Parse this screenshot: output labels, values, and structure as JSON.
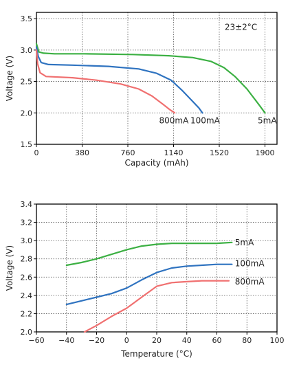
{
  "chart_data": [
    {
      "type": "line",
      "xlabel": "Capacity (mAh)",
      "ylabel": "Voltage (V)",
      "xlim": [
        0,
        2000
      ],
      "ylim": [
        1.5,
        3.6
      ],
      "xticks": [
        {
          "v": 0,
          "label": "0"
        },
        {
          "v": 380,
          "label": "380"
        },
        {
          "v": 760,
          "label": "760"
        },
        {
          "v": 1140,
          "label": "1140"
        },
        {
          "v": 1520,
          "label": "1520"
        },
        {
          "v": 1900,
          "label": "1900"
        }
      ],
      "yticks": [
        {
          "v": 1.5,
          "label": "1.5"
        },
        {
          "v": 2.0,
          "label": "2.0"
        },
        {
          "v": 2.5,
          "label": "2.5"
        },
        {
          "v": 3.0,
          "label": "3.0"
        },
        {
          "v": 3.5,
          "label": "3.5"
        }
      ],
      "annotation": "23±2°C",
      "grid": true,
      "series": [
        {
          "name": "5mA",
          "color": "#3cb043",
          "x": [
            0,
            20,
            60,
            150,
            400,
            800,
            1100,
            1300,
            1450,
            1560,
            1650,
            1750,
            1850,
            1900
          ],
          "y": [
            3.1,
            2.97,
            2.95,
            2.94,
            2.94,
            2.93,
            2.91,
            2.88,
            2.82,
            2.72,
            2.58,
            2.38,
            2.13,
            2.0
          ]
        },
        {
          "name": "100mA",
          "color": "#2f73c0",
          "x": [
            0,
            15,
            40,
            100,
            300,
            600,
            850,
            1000,
            1120,
            1210,
            1290,
            1350,
            1380
          ],
          "y": [
            3.05,
            2.9,
            2.8,
            2.77,
            2.76,
            2.74,
            2.7,
            2.63,
            2.52,
            2.36,
            2.2,
            2.08,
            2.0
          ]
        },
        {
          "name": "800mA",
          "color": "#f07070",
          "x": [
            0,
            10,
            30,
            80,
            300,
            500,
            700,
            850,
            960,
            1050,
            1110,
            1150
          ],
          "y": [
            3.0,
            2.78,
            2.64,
            2.58,
            2.56,
            2.52,
            2.46,
            2.38,
            2.27,
            2.14,
            2.05,
            2.0
          ]
        }
      ],
      "series_labels": [
        {
          "text": "800mA",
          "color": "#222",
          "at": [
            1020,
            1.88
          ]
        },
        {
          "text": "100mA",
          "color": "#222",
          "at": [
            1280,
            1.88
          ]
        },
        {
          "text": "5mA",
          "color": "#222",
          "at": [
            1840,
            1.88
          ]
        }
      ]
    },
    {
      "type": "line",
      "xlabel": "Temperature (°C)",
      "ylabel": "Voltage (V)",
      "xlim": [
        -60,
        100
      ],
      "ylim": [
        2.0,
        3.4
      ],
      "xticks": [
        {
          "v": -60,
          "label": "−60"
        },
        {
          "v": -40,
          "label": "−40"
        },
        {
          "v": -20,
          "label": "−20"
        },
        {
          "v": 0,
          "label": "0"
        },
        {
          "v": 20,
          "label": "20"
        },
        {
          "v": 40,
          "label": "40"
        },
        {
          "v": 60,
          "label": "60"
        },
        {
          "v": 80,
          "label": "80"
        },
        {
          "v": 100,
          "label": "100"
        }
      ],
      "yticks": [
        {
          "v": 2.0,
          "label": "2.0"
        },
        {
          "v": 2.2,
          "label": "2.2"
        },
        {
          "v": 2.4,
          "label": "2.4"
        },
        {
          "v": 2.6,
          "label": "2.6"
        },
        {
          "v": 2.8,
          "label": "2.8"
        },
        {
          "v": 3.0,
          "label": "3.0"
        },
        {
          "v": 3.2,
          "label": "3.2"
        },
        {
          "v": 3.4,
          "label": "3.4"
        }
      ],
      "grid": true,
      "series": [
        {
          "name": "5mA",
          "color": "#3cb043",
          "x": [
            -40,
            -30,
            -20,
            -10,
            0,
            10,
            20,
            30,
            40,
            50,
            60,
            70
          ],
          "y": [
            2.73,
            2.76,
            2.8,
            2.85,
            2.9,
            2.94,
            2.96,
            2.97,
            2.97,
            2.97,
            2.97,
            2.98
          ]
        },
        {
          "name": "100mA",
          "color": "#2f73c0",
          "x": [
            -40,
            -30,
            -20,
            -10,
            0,
            10,
            20,
            30,
            40,
            50,
            60,
            70
          ],
          "y": [
            2.3,
            2.34,
            2.38,
            2.42,
            2.48,
            2.57,
            2.65,
            2.7,
            2.72,
            2.73,
            2.74,
            2.74
          ]
        },
        {
          "name": "800mA",
          "color": "#f07070",
          "x": [
            -28,
            -20,
            -10,
            0,
            10,
            20,
            30,
            40,
            50,
            60,
            68
          ],
          "y": [
            2.0,
            2.07,
            2.17,
            2.26,
            2.38,
            2.5,
            2.54,
            2.55,
            2.56,
            2.56,
            2.56
          ]
        }
      ],
      "series_labels": [
        {
          "text": "5mA",
          "color": "#222",
          "at": [
            72,
            2.98
          ]
        },
        {
          "text": "100mA",
          "color": "#222",
          "at": [
            72,
            2.75
          ]
        },
        {
          "text": "800mA",
          "color": "#222",
          "at": [
            72,
            2.55
          ]
        }
      ]
    }
  ]
}
